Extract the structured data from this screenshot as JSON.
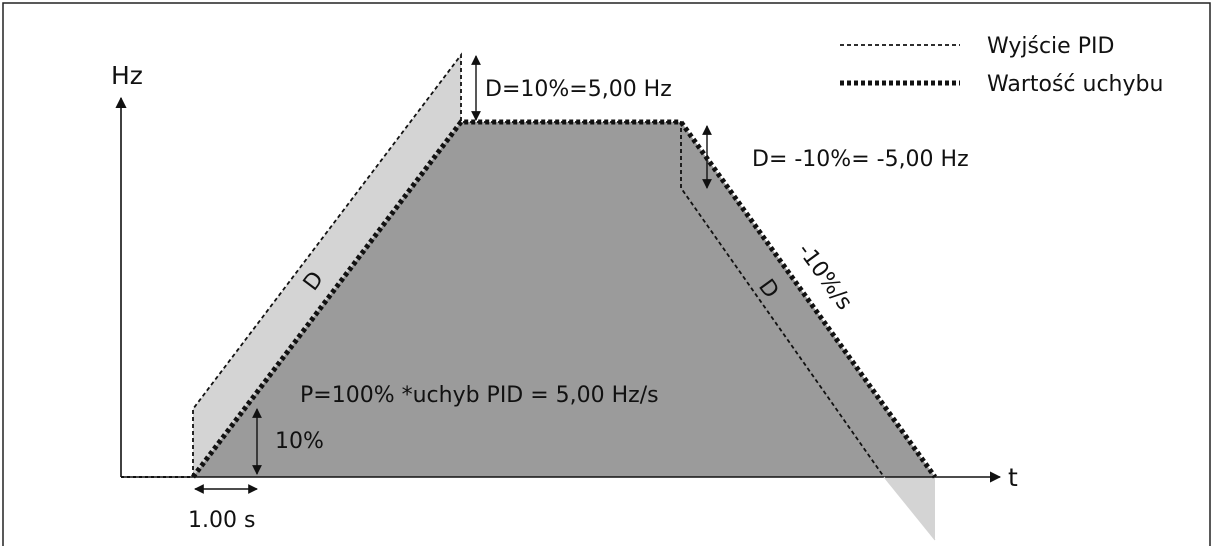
{
  "labels": {
    "y_axis": "Hz",
    "x_axis": "t",
    "d_top": "D=10%=5,00 Hz",
    "d_right": "D= -10%= -5,00 Hz",
    "d_rise": "D",
    "d_fall": "D",
    "slope": "-10%/s",
    "p_formula": "P=100% *uchyb PID = 5,00 Hz/s",
    "ten_pct": "10%",
    "time_step": "1.00 s"
  },
  "legend": {
    "items": [
      {
        "label": "Wyjście PID",
        "style": "dotted-thin"
      },
      {
        "label": "Wartość uchybu",
        "style": "dotted-thick"
      }
    ]
  },
  "colors": {
    "error_fill": "#9b9b9b",
    "pid_fill": "#d4d4d4",
    "line": "#111111",
    "border": "#222222"
  }
}
